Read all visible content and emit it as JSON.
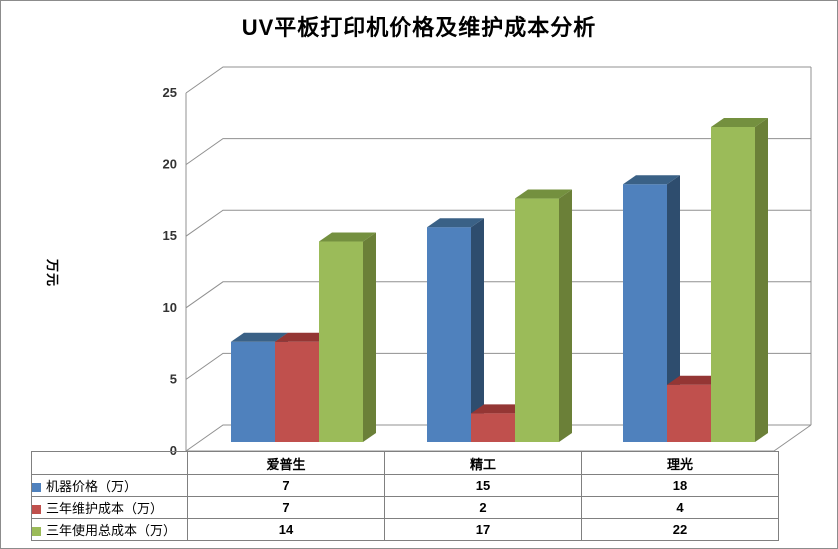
{
  "title": "UV平板打印机价格及维护成本分析",
  "y_axis": {
    "label": "万元",
    "ticks": [
      0,
      5,
      10,
      15,
      20,
      25
    ]
  },
  "chart_data": {
    "type": "bar",
    "projection": "3d-clustered-column",
    "title": "UV平板打印机价格及维护成本分析",
    "xlabel": "",
    "ylabel": "万元",
    "ylim": [
      0,
      25
    ],
    "grid": true,
    "legend_position": "bottom-left-table",
    "categories": [
      "爱普生",
      "精工",
      "理光"
    ],
    "series": [
      {
        "name": "机器价格（万）",
        "values": [
          7,
          15,
          18
        ],
        "color": "#4f81bd",
        "color_top": "#3a6186",
        "color_side": "#2e4d6e"
      },
      {
        "name": "三年维护成本（万）",
        "values": [
          7,
          2,
          4
        ],
        "color": "#c0504d",
        "color_top": "#943634",
        "color_side": "#7a2f2d"
      },
      {
        "name": "三年使用总成本（万）",
        "values": [
          14,
          17,
          22
        ],
        "color": "#9bbb59",
        "color_top": "#74903f",
        "color_side": "#6b8038"
      }
    ]
  },
  "colors": {
    "gridline": "#909090",
    "table_border": "#808080",
    "canvas_border": "#8c8c8c",
    "text": "#000000"
  }
}
